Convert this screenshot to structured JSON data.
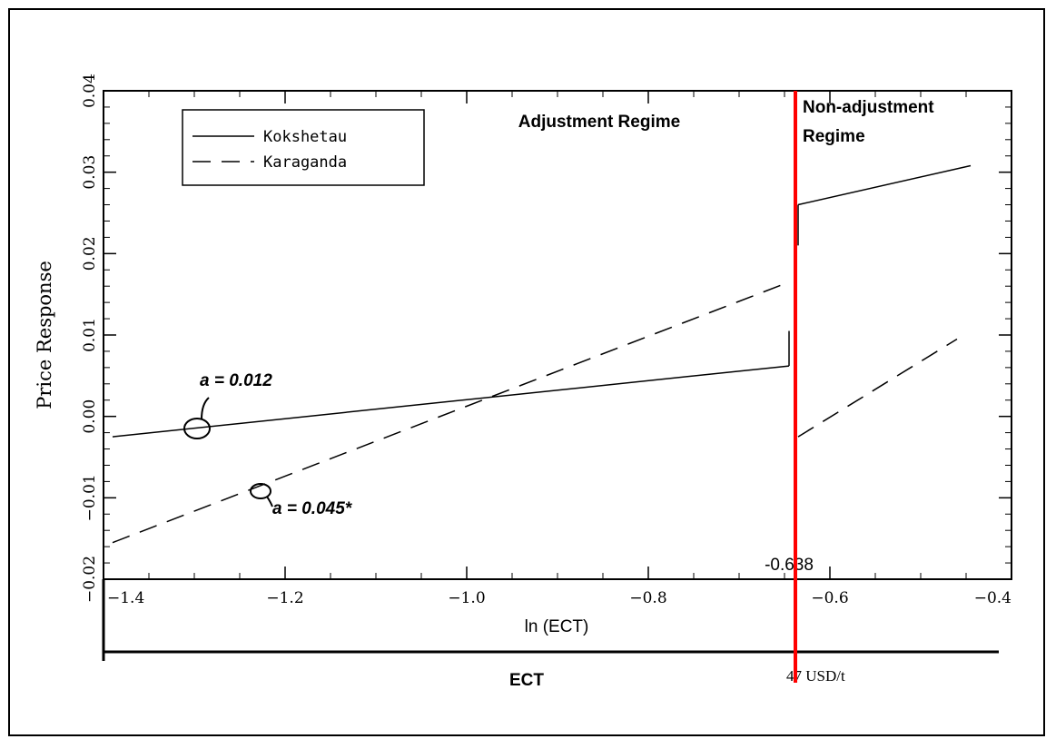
{
  "chart_data": {
    "type": "line",
    "ylabel": "Price Response",
    "xlabel": "ln (ECT)",
    "second_axis_label": "ECT",
    "xlim": [
      -1.4,
      -0.4
    ],
    "ylim": [
      -0.02,
      0.04
    ],
    "x_ticks": [
      "−1.4",
      "−1.2",
      "−1.0",
      "−0.8",
      "−0.6",
      "−0.4"
    ],
    "x_tick_values": [
      -1.4,
      -1.2,
      -1.0,
      -0.8,
      -0.6,
      -0.4
    ],
    "y_ticks": [
      "−0.02",
      "−0.01",
      "0.00",
      "0.01",
      "0.02",
      "0.03",
      "0.04"
    ],
    "y_tick_values": [
      -0.02,
      -0.01,
      0.0,
      0.01,
      0.02,
      0.03,
      0.04
    ],
    "grid": false,
    "legend_position": "top-left",
    "threshold": {
      "x": -0.638,
      "label": "-0.638",
      "secondary_label": "47 USD/t",
      "color": "#ff0000"
    },
    "regimes": {
      "left": "Adjustment Regime",
      "right_line1": "Non-adjustment",
      "right_line2": "Regime"
    },
    "series": [
      {
        "name": "Kokshetau",
        "style": "solid",
        "segments": [
          [
            [
              -1.39,
              -0.0025
            ],
            [
              -0.645,
              0.0062
            ]
          ],
          [
            [
              -0.645,
              0.0062
            ],
            [
              -0.645,
              0.0105
            ]
          ],
          [
            [
              -0.635,
              0.021
            ],
            [
              -0.635,
              0.026
            ]
          ],
          [
            [
              -0.635,
              0.026
            ],
            [
              -0.445,
              0.0308
            ]
          ]
        ]
      },
      {
        "name": "Karaganda",
        "style": "dashed",
        "segments": [
          [
            [
              -1.39,
              -0.0155
            ],
            [
              -0.645,
              0.0165
            ]
          ],
          [
            [
              -0.635,
              -0.0025
            ],
            [
              -0.46,
              0.0095
            ]
          ]
        ]
      }
    ],
    "annotations": [
      {
        "text": "a = 0.012",
        "x": -1.31,
        "y": -0.0015
      },
      {
        "text": "a = 0.045*",
        "x": -1.225,
        "y": -0.0093
      }
    ]
  }
}
